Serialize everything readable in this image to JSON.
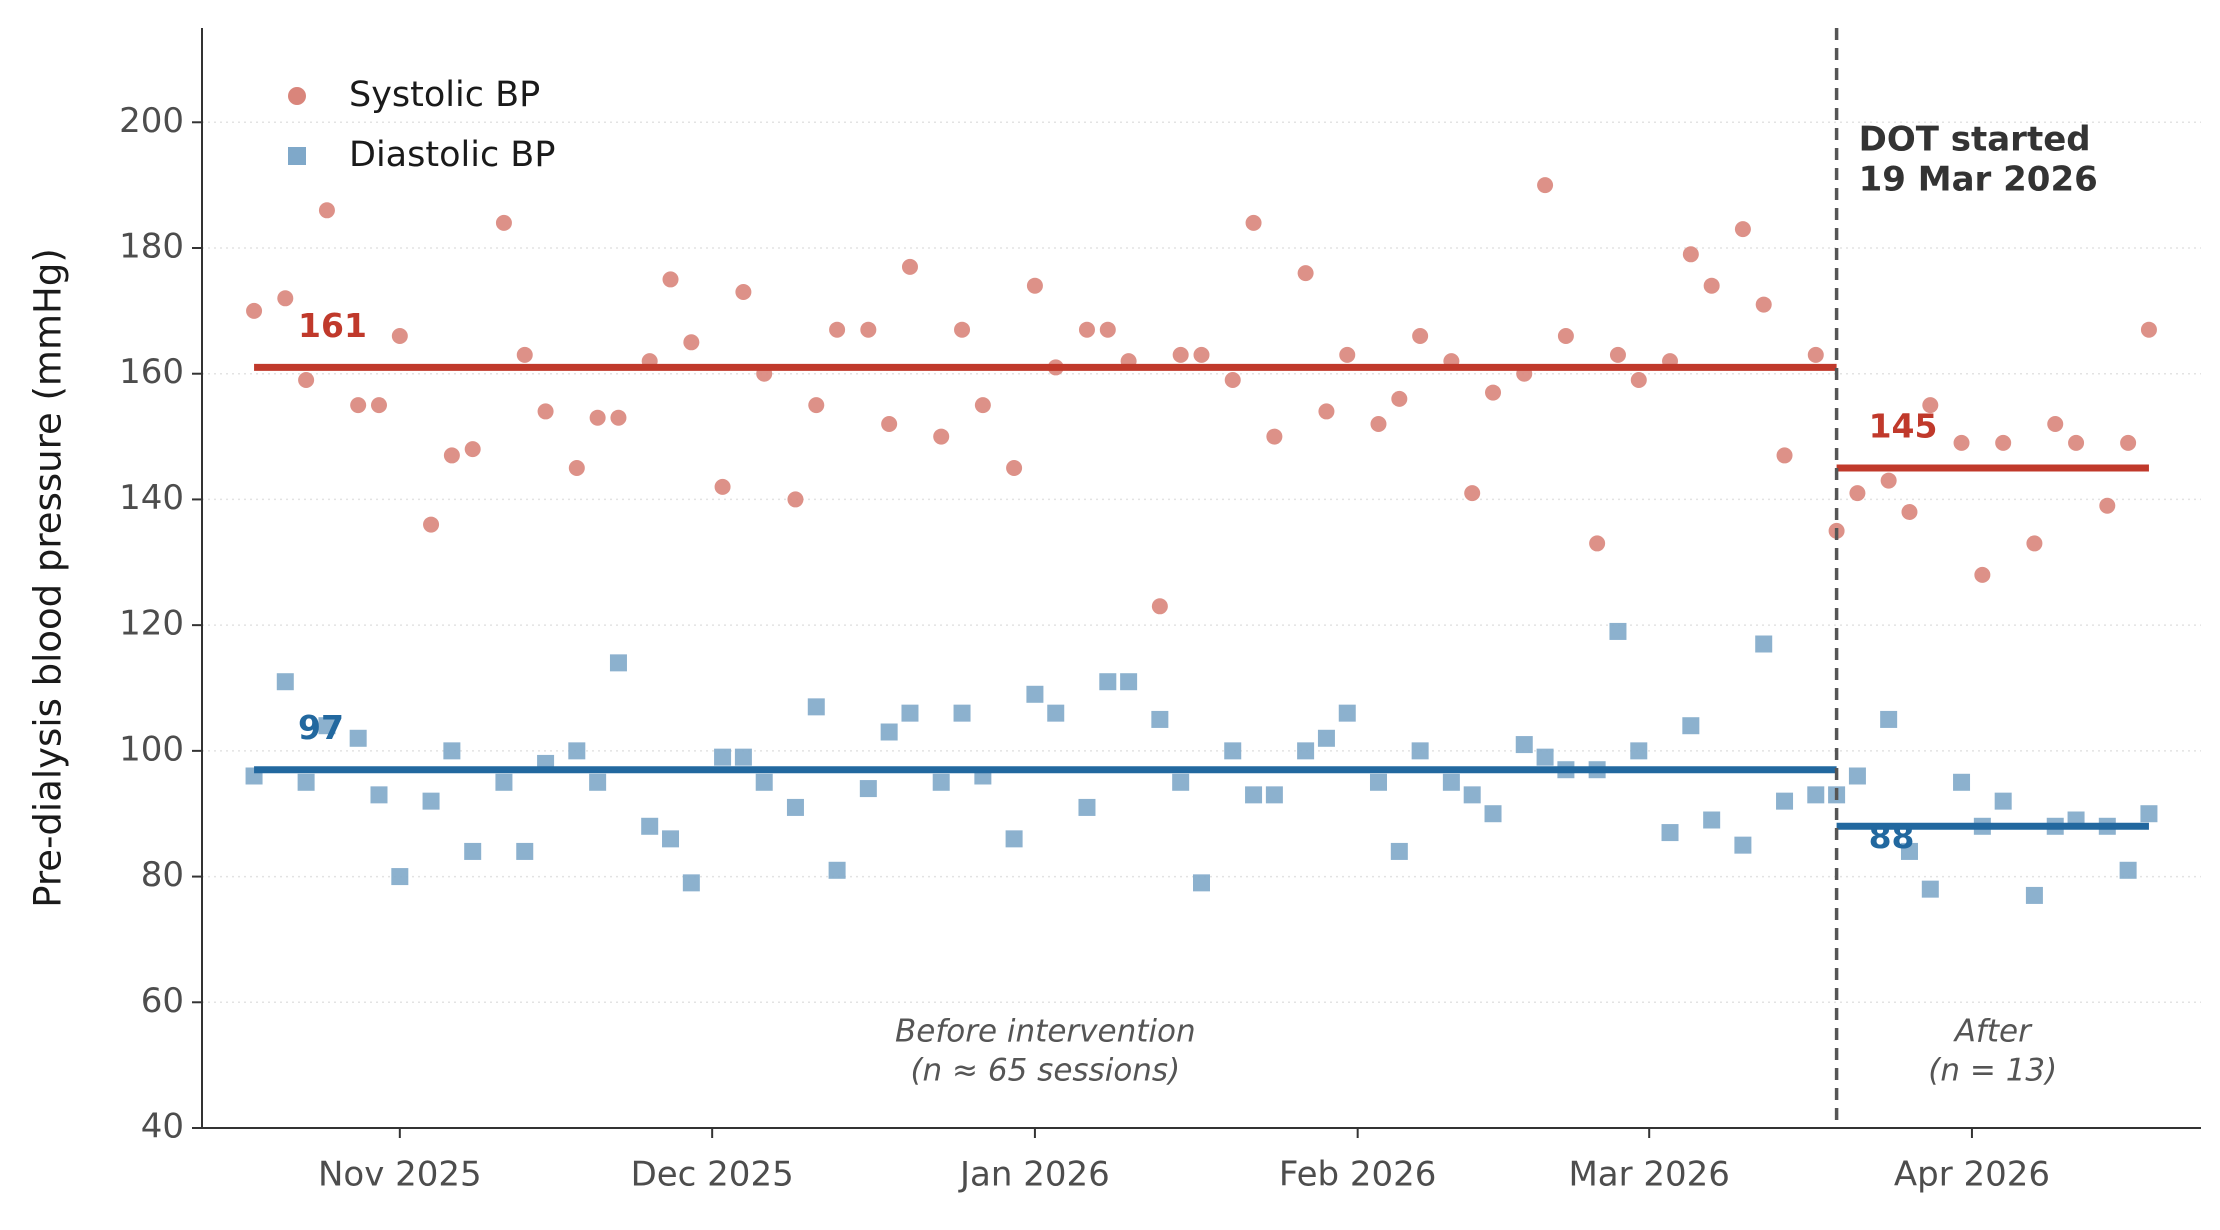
{
  "chart_data": {
    "type": "scatter",
    "ylabel": "Pre-dialysis blood pressure (mmHg)",
    "ylim": [
      40,
      215
    ],
    "yticks": [
      40,
      60,
      80,
      100,
      120,
      140,
      160,
      180,
      200
    ],
    "xlim": [
      "2025-10-13",
      "2026-04-23"
    ],
    "xticks": [
      {
        "value": "2025-11-01",
        "label": "Nov 2025"
      },
      {
        "value": "2025-12-01",
        "label": "Dec 2025"
      },
      {
        "value": "2026-01-01",
        "label": "Jan 2026"
      },
      {
        "value": "2026-02-01",
        "label": "Feb 2026"
      },
      {
        "value": "2026-03-01",
        "label": "Mar 2026"
      },
      {
        "value": "2026-04-01",
        "label": "Apr 2026"
      }
    ],
    "grid": true,
    "legend": "upper left",
    "x": [
      "2025-10-18",
      "2025-10-21",
      "2025-10-23",
      "2025-10-25",
      "2025-10-28",
      "2025-10-30",
      "2025-11-01",
      "2025-11-04",
      "2025-11-06",
      "2025-11-08",
      "2025-11-11",
      "2025-11-13",
      "2025-11-15",
      "2025-11-18",
      "2025-11-20",
      "2025-11-22",
      "2025-11-25",
      "2025-11-27",
      "2025-11-29",
      "2025-12-02",
      "2025-12-04",
      "2025-12-06",
      "2025-12-09",
      "2025-12-11",
      "2025-12-13",
      "2025-12-16",
      "2025-12-18",
      "2025-12-20",
      "2025-12-23",
      "2025-12-25",
      "2025-12-27",
      "2025-12-30",
      "2026-01-01",
      "2026-01-03",
      "2026-01-06",
      "2026-01-08",
      "2026-01-10",
      "2026-01-13",
      "2026-01-15",
      "2026-01-17",
      "2026-01-20",
      "2026-01-22",
      "2026-01-24",
      "2026-01-27",
      "2026-01-29",
      "2026-01-31",
      "2026-02-03",
      "2026-02-05",
      "2026-02-07",
      "2026-02-10",
      "2026-02-12",
      "2026-02-14",
      "2026-02-17",
      "2026-02-19",
      "2026-02-21",
      "2026-02-24",
      "2026-02-26",
      "2026-02-28",
      "2026-03-03",
      "2026-03-05",
      "2026-03-07",
      "2026-03-10",
      "2026-03-12",
      "2026-03-14",
      "2026-03-17",
      "2026-03-19",
      "2026-03-21",
      "2026-03-24",
      "2026-03-26",
      "2026-03-28",
      "2026-03-31",
      "2026-04-02",
      "2026-04-04",
      "2026-04-07",
      "2026-04-09",
      "2026-04-11",
      "2026-04-14",
      "2026-04-16",
      "2026-04-18"
    ],
    "series": [
      {
        "name": "Systolic BP",
        "marker": "circle",
        "color": "#d9857b",
        "mean_color": "#c0392b",
        "means": [
          161,
          145
        ],
        "values": [
          170,
          172,
          159,
          186,
          155,
          155,
          166,
          136,
          147,
          148,
          184,
          163,
          154,
          145,
          153,
          153,
          162,
          175,
          165,
          142,
          173,
          160,
          140,
          155,
          167,
          167,
          152,
          177,
          150,
          167,
          155,
          145,
          174,
          161,
          167,
          167,
          162,
          123,
          163,
          163,
          159,
          184,
          150,
          176,
          154,
          163,
          152,
          156,
          166,
          162,
          141,
          157,
          160,
          190,
          166,
          133,
          163,
          159,
          162,
          179,
          174,
          183,
          171,
          147,
          163,
          135,
          141,
          143,
          138,
          155,
          149,
          128,
          149,
          133,
          152,
          149,
          139,
          149,
          167
        ]
      },
      {
        "name": "Diastolic BP",
        "marker": "square",
        "color": "#7fa8c9",
        "mean_color": "#22689f",
        "means": [
          97,
          88
        ],
        "values": [
          96,
          111,
          95,
          104,
          102,
          93,
          80,
          92,
          100,
          84,
          95,
          84,
          98,
          100,
          95,
          114,
          88,
          86,
          79,
          99,
          99,
          95,
          91,
          107,
          81,
          94,
          103,
          106,
          95,
          106,
          96,
          86,
          109,
          106,
          91,
          111,
          111,
          105,
          95,
          79,
          100,
          93,
          93,
          100,
          102,
          106,
          95,
          84,
          100,
          95,
          93,
          90,
          101,
          99,
          97,
          97,
          119,
          100,
          87,
          104,
          89,
          85,
          117,
          92,
          93,
          93,
          96,
          105,
          84,
          78,
          95,
          88,
          92,
          77,
          88,
          89,
          88,
          81,
          90
        ]
      }
    ],
    "intervention": {
      "date": "2026-03-19",
      "label": [
        "DOT started",
        "19 Mar 2026"
      ]
    },
    "period_labels": [
      [
        "Before intervention",
        "(n ≈ 65 sessions)"
      ],
      [
        "After",
        "(n = 13)"
      ]
    ]
  }
}
